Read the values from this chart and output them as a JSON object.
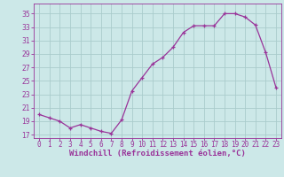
{
  "x": [
    0,
    1,
    2,
    3,
    4,
    5,
    6,
    7,
    8,
    9,
    10,
    11,
    12,
    13,
    14,
    15,
    16,
    17,
    18,
    19,
    20,
    21,
    22,
    23
  ],
  "y": [
    20.0,
    19.5,
    19.0,
    18.0,
    18.5,
    18.0,
    17.5,
    17.2,
    19.2,
    23.5,
    25.5,
    27.5,
    28.5,
    30.0,
    32.2,
    33.2,
    33.2,
    33.2,
    35.0,
    35.0,
    34.5,
    33.3,
    29.2,
    24.0
  ],
  "line_color": "#993399",
  "marker": "+",
  "marker_size": 3,
  "bg_color": "#cce8e8",
  "grid_color": "#aacccc",
  "xlabel": "Windchill (Refroidissement éolien,°C)",
  "xlabel_fontsize": 6.5,
  "yticks": [
    17,
    19,
    21,
    23,
    25,
    27,
    29,
    31,
    33,
    35
  ],
  "xtick_labels": [
    "0",
    "1",
    "2",
    "3",
    "4",
    "5",
    "6",
    "7",
    "8",
    "9",
    "10",
    "11",
    "12",
    "13",
    "14",
    "15",
    "16",
    "17",
    "18",
    "19",
    "20",
    "21",
    "22",
    "23"
  ],
  "ylim": [
    16.5,
    36.5
  ],
  "xlim": [
    -0.5,
    23.5
  ],
  "tick_color": "#993399",
  "tick_fontsize": 5.5,
  "xlabel_color": "#993399",
  "line_width": 0.9,
  "marker_edge_width": 0.9
}
